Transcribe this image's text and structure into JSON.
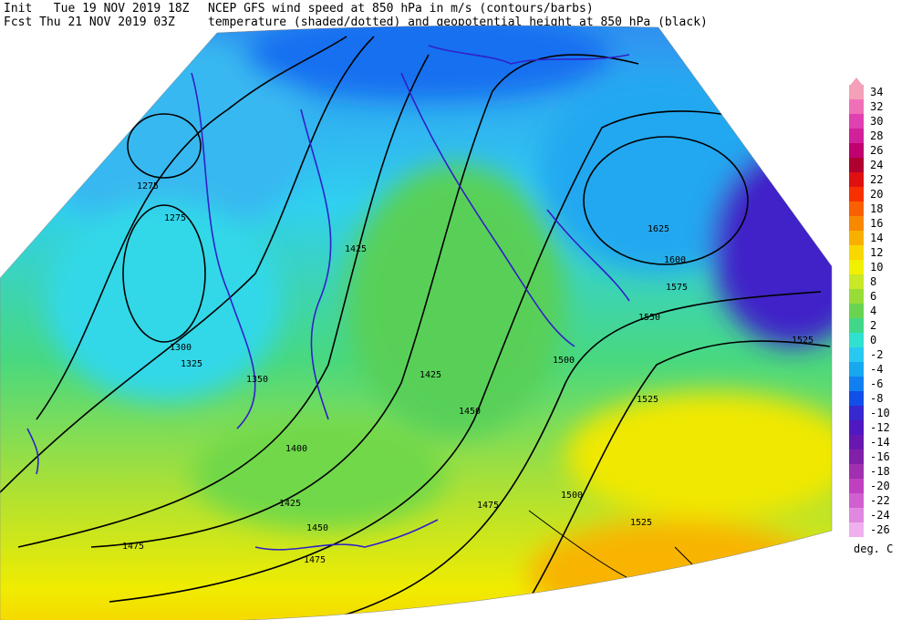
{
  "header": {
    "init": "Init   Tue 19 NOV 2019 18Z",
    "fcst": "Fcst Thu 21 NOV 2019 03Z",
    "title1": "NCEP GFS wind speed at 850 hPa in m/s (contours/barbs)",
    "title2": "temperature (shaded/dotted) and geopotential height at 850 hPa (black)"
  },
  "colorbar": {
    "labels": [
      34,
      32,
      30,
      28,
      26,
      24,
      22,
      20,
      18,
      16,
      14,
      12,
      10,
      8,
      6,
      4,
      2,
      0,
      -2,
      -4,
      -6,
      -8,
      -10,
      -12,
      -14,
      -16,
      -18,
      -20,
      -22,
      -24,
      -26
    ],
    "colors": [
      "#f4a0b8",
      "#f070b8",
      "#e040b0",
      "#d0209a",
      "#c00070",
      "#b00030",
      "#e01010",
      "#f83000",
      "#f86000",
      "#f88800",
      "#f8b000",
      "#f8d800",
      "#f0f000",
      "#c8e828",
      "#98dc38",
      "#68d450",
      "#40d888",
      "#30e0d0",
      "#28c8f0",
      "#18a8f0",
      "#1080f0",
      "#1050e8",
      "#3828d0",
      "#5018c0",
      "#6818b0",
      "#8020a8",
      "#a030b0",
      "#c040c0",
      "#d060d0",
      "#e088e0",
      "#f0b0f0"
    ],
    "unit": "deg. C"
  },
  "contour_labels": [
    "1275",
    "1275",
    "1300",
    "1325",
    "1350",
    "1400",
    "1425",
    "1425",
    "1425",
    "1450",
    "1450",
    "1475",
    "1475",
    "1475",
    "1500",
    "1500",
    "1525",
    "1525",
    "1525",
    "1550",
    "1575",
    "1600",
    "1625"
  ]
}
